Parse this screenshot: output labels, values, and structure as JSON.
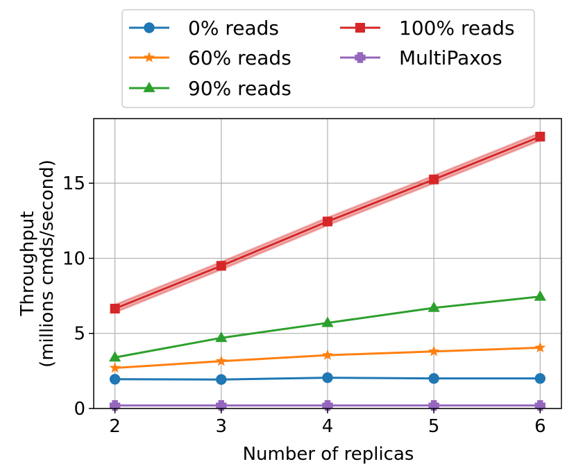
{
  "chart_data": {
    "type": "line",
    "xlabel": "Number of replicas",
    "ylabel_line1": "Throughput",
    "ylabel_line2": "(millions cmds/second)",
    "x": [
      2,
      3,
      4,
      5,
      6
    ],
    "xlim": [
      1.8,
      6.2
    ],
    "ylim": [
      0,
      19.3
    ],
    "xticks": [
      2,
      3,
      4,
      5,
      6
    ],
    "yticks": [
      0,
      5,
      10,
      15
    ],
    "grid": true,
    "legend_position": "top-center, outside plot",
    "series": [
      {
        "name": "0% reads",
        "color": "#1f77b4",
        "marker": "circle",
        "values": [
          1.95,
          1.93,
          2.05,
          2.0,
          2.0
        ]
      },
      {
        "name": "60% reads",
        "color": "#ff7f0e",
        "marker": "star",
        "values": [
          2.7,
          3.15,
          3.55,
          3.8,
          4.05
        ]
      },
      {
        "name": "90% reads",
        "color": "#2ca02c",
        "marker": "triangle",
        "values": [
          3.4,
          4.7,
          5.7,
          6.7,
          7.45
        ]
      },
      {
        "name": "100% reads",
        "color": "#d62728",
        "marker": "square",
        "values": [
          6.65,
          9.5,
          12.45,
          15.25,
          18.1
        ],
        "band": 0.25
      },
      {
        "name": "MultiPaxos",
        "color": "#9467bd",
        "marker": "plus",
        "values": [
          0.2,
          0.2,
          0.2,
          0.2,
          0.2
        ]
      }
    ]
  }
}
